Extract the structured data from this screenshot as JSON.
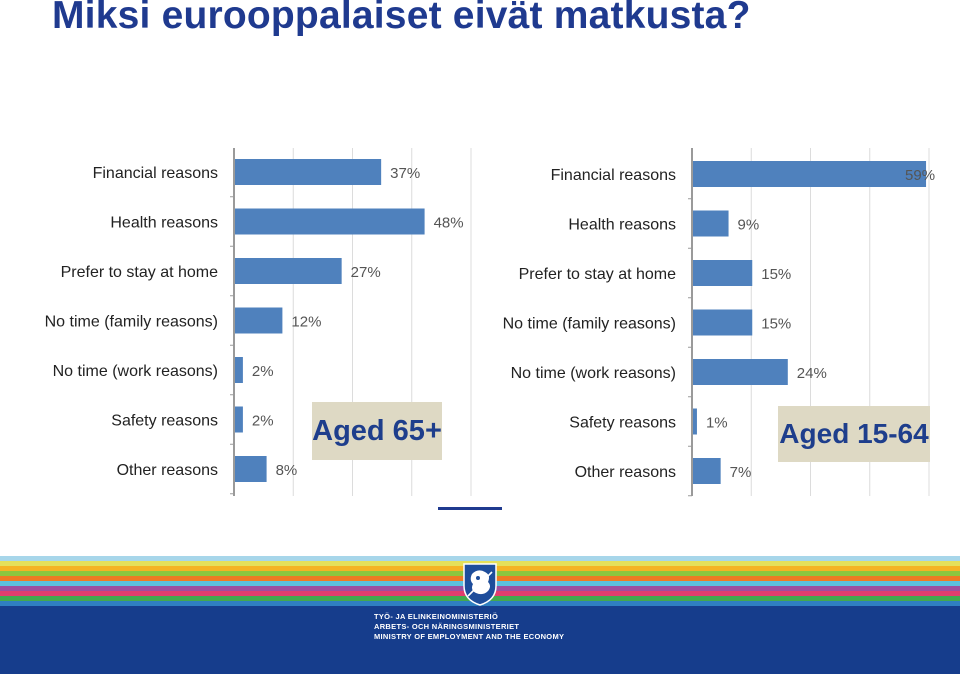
{
  "slide": {
    "title": "Miksi eurooppalaiset eivät matkusta?"
  },
  "chart_data": [
    {
      "type": "bar",
      "orientation": "horizontal",
      "badge": "Aged 65+",
      "categories": [
        "Financial reasons",
        "Health reasons",
        "Prefer to stay at home",
        "No time (family reasons)",
        "No time (work reasons)",
        "Safety reasons",
        "Other reasons"
      ],
      "values": [
        37,
        48,
        27,
        12,
        2,
        2,
        8
      ],
      "value_labels": [
        "37%",
        "48%",
        "27%",
        "12%",
        "2%",
        "2%",
        "8%"
      ],
      "xlim": [
        0,
        60
      ],
      "grid": true,
      "bar_color": "#4f81bd"
    },
    {
      "type": "bar",
      "orientation": "horizontal",
      "badge": "Aged 15-64",
      "categories": [
        "Financial reasons",
        "Health reasons",
        "Prefer to stay at home",
        "No time (family reasons)",
        "No time (work reasons)",
        "Safety reasons",
        "Other reasons"
      ],
      "values": [
        59,
        9,
        15,
        15,
        24,
        1,
        7
      ],
      "value_labels": [
        "59%",
        "9%",
        "15%",
        "15%",
        "24%",
        "1%",
        "7%"
      ],
      "xlim": [
        0,
        60
      ],
      "grid": true,
      "bar_color": "#4f81bd"
    }
  ],
  "footer": {
    "ministry_lines": [
      "TYÖ- JA ELINKEINOMINISTERIÖ",
      "ARBETS- OCH NÄRINGSMINISTERIET",
      "MINISTRY OF EMPLOYMENT AND THE ECONOMY"
    ],
    "crest_icon": "lion-crest-icon",
    "band_color": "#163d8c",
    "stripe_colors": [
      "#a7d6ea",
      "#e5e05a",
      "#f5b324",
      "#8cc63f",
      "#ee7a23",
      "#5bc0de",
      "#9e4e9e",
      "#e23d6e",
      "#43a94e",
      "#2f7fc1"
    ]
  }
}
